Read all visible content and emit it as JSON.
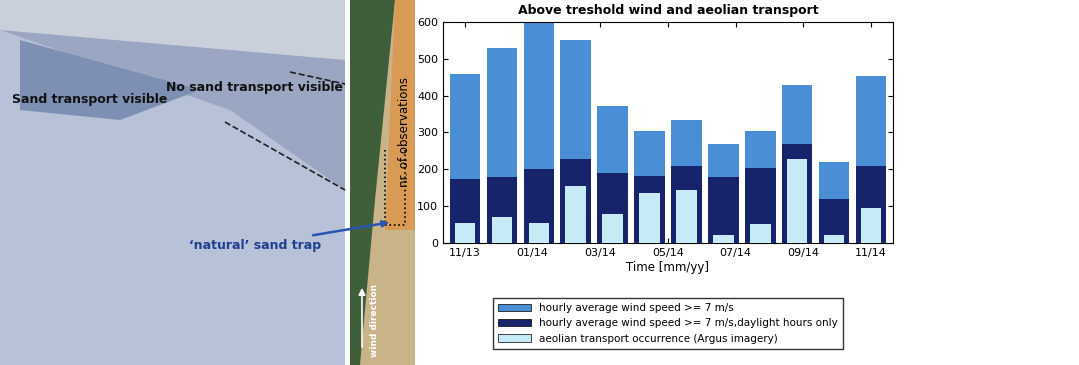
{
  "chart_data": {
    "type": "bar",
    "title": "Above treshold wind and aeolian transport",
    "x_label": "Time [mm/yy]",
    "y_label": "nr. of observations",
    "x": [
      0,
      1.09,
      2.18,
      3.27,
      4.36,
      5.45,
      6.55,
      7.64,
      8.73,
      9.82,
      10.91,
      12
    ],
    "xlim": [
      -0.65,
      12.65
    ],
    "xticks": [
      {
        "value": 0,
        "label": "11/13"
      },
      {
        "value": 2,
        "label": "01/14"
      },
      {
        "value": 4,
        "label": "03/14"
      },
      {
        "value": 6,
        "label": "05/14"
      },
      {
        "value": 8,
        "label": "07/14"
      },
      {
        "value": 10,
        "label": "09/14"
      },
      {
        "value": 12,
        "label": "11/14"
      }
    ],
    "ylim": [
      0,
      600
    ],
    "yticks": [
      0,
      100,
      200,
      300,
      400,
      500,
      600
    ],
    "grid": false,
    "stacked": false,
    "legend": "lower center",
    "series": [
      {
        "name": "hourly average wind speed >= 7 m/s",
        "color": "#4a8fd6",
        "values": [
          460,
          530,
          597,
          550,
          372,
          305,
          333,
          268,
          305,
          428,
          220,
          453
        ]
      },
      {
        "name": "hourly average wind speed >= 7 m/s,daylight hours only",
        "color": "#17236b",
        "values": [
          175,
          178,
          200,
          228,
          190,
          182,
          210,
          180,
          205,
          270,
          120,
          210
        ]
      },
      {
        "name": "aeolian transport occurrence (Argus imagery)",
        "color": "#c6ebf7",
        "values": [
          55,
          70,
          55,
          155,
          78,
          135,
          145,
          22,
          52,
          228,
          22,
          95
        ]
      }
    ]
  },
  "photo": {
    "annotations": [
      "Sand transport visible",
      "No sand transport visible",
      "‘natural’ sand trap",
      "wind direction"
    ]
  }
}
